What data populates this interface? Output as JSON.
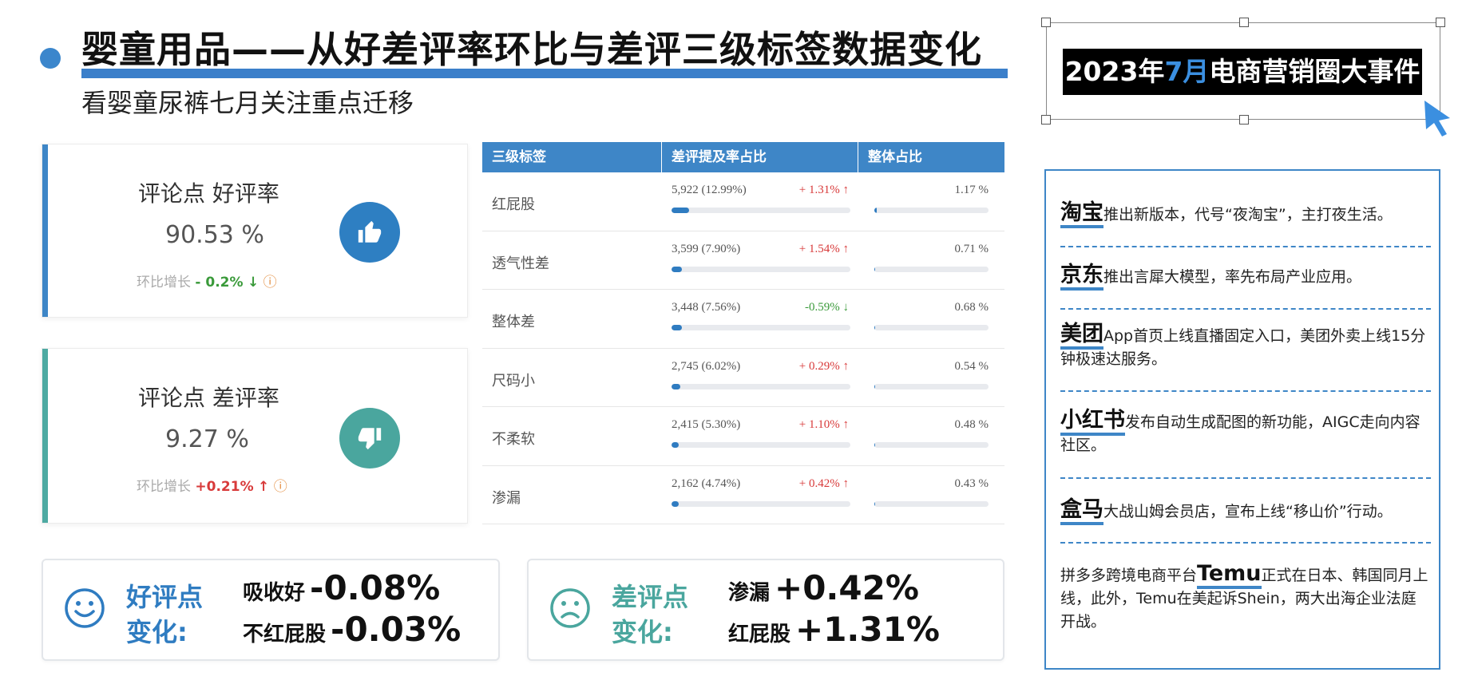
{
  "header": {
    "title": "婴童用品——从好差评率环比与差评三级标签数据变化",
    "subtitle": "看婴童尿裤七月关注重点迁移"
  },
  "cards": [
    {
      "label": "评论点 好评率",
      "value": "90.53 %",
      "growth_label": "环比增长",
      "growth_value": "- 0.2%",
      "growth_arrow": "↓",
      "icon": "thumbs-up-icon"
    },
    {
      "label": "评论点 差评率",
      "value": "9.27 %",
      "growth_label": "环比增长",
      "growth_value": "+0.21%",
      "growth_arrow": "↑",
      "icon": "thumbs-down-icon"
    }
  ],
  "table": {
    "headers": [
      "三级标签",
      "差评提及率占比",
      "整体占比"
    ],
    "rows": [
      {
        "tag": "红屁股",
        "count": "5,922 (12.99%)",
        "change": "+ 1.31% ↑",
        "direction": "up",
        "share": "1.17 %",
        "mention_ratio": 0.1299,
        "overall_ratio": 0.0117
      },
      {
        "tag": "透气性差",
        "count": "3,599 (7.90%)",
        "change": "+ 1.54% ↑",
        "direction": "up",
        "share": "0.71 %",
        "mention_ratio": 0.079,
        "overall_ratio": 0.0071
      },
      {
        "tag": "整体差",
        "count": "3,448 (7.56%)",
        "change": "-0.59% ↓",
        "direction": "down",
        "share": "0.68 %",
        "mention_ratio": 0.0756,
        "overall_ratio": 0.0068
      },
      {
        "tag": "尺码小",
        "count": "2,745 (6.02%)",
        "change": "+ 0.29% ↑",
        "direction": "up",
        "share": "0.54 %",
        "mention_ratio": 0.0602,
        "overall_ratio": 0.0054
      },
      {
        "tag": "不柔软",
        "count": "2,415 (5.30%)",
        "change": "+ 1.10% ↑",
        "direction": "up",
        "share": "0.48 %",
        "mention_ratio": 0.053,
        "overall_ratio": 0.0048
      },
      {
        "tag": "渗漏",
        "count": "2,162 (4.74%)",
        "change": "+ 0.42% ↑",
        "direction": "up",
        "share": "0.43 %",
        "mention_ratio": 0.0474,
        "overall_ratio": 0.0043
      }
    ]
  },
  "summary": {
    "good": {
      "label_line1": "好评点",
      "label_line2": "变化:",
      "items": [
        {
          "k": "吸收好",
          "v": "-0.08%"
        },
        {
          "k": "不红屁股",
          "v": "-0.03%"
        }
      ],
      "icon": "smile-icon"
    },
    "bad": {
      "label_line1": "差评点",
      "label_line2": "变化:",
      "items": [
        {
          "k": "渗漏",
          "v": "+0.42%"
        },
        {
          "k": "红屁股",
          "v": "+1.31%"
        }
      ],
      "icon": "frown-icon"
    }
  },
  "events": {
    "title_pre": "2023年",
    "title_hl": "7月",
    "title_post": "电商营销圈大事件",
    "items": [
      {
        "brand": "淘宝",
        "text": "推出新版本，代号“夜淘宝”，主打夜生活。"
      },
      {
        "brand": "京东",
        "text": "推出言犀大模型，率先布局产业应用。"
      },
      {
        "brand": "美团",
        "text": "App首页上线直播固定入口，美团外卖上线15分钟极速达服务。"
      },
      {
        "brand": "小红书",
        "text": "发布自动生成配图的新功能，AIGC走向内容社区。"
      },
      {
        "brand": "盒马",
        "text": "大战山姆会员店，宣布上线“移山价”行动。"
      },
      {
        "pre": "拼多多跨境电商平台",
        "brand": "Temu",
        "text": "正式在日本、韩国同月上线，此外，Temu在美起诉Shein，两大出海企业法庭开战。"
      }
    ]
  },
  "colors": {
    "accent_blue": "#3e86c7",
    "teal": "#4aa69e",
    "up_red": "#d83a3a",
    "down_green": "#3a9a3a"
  }
}
